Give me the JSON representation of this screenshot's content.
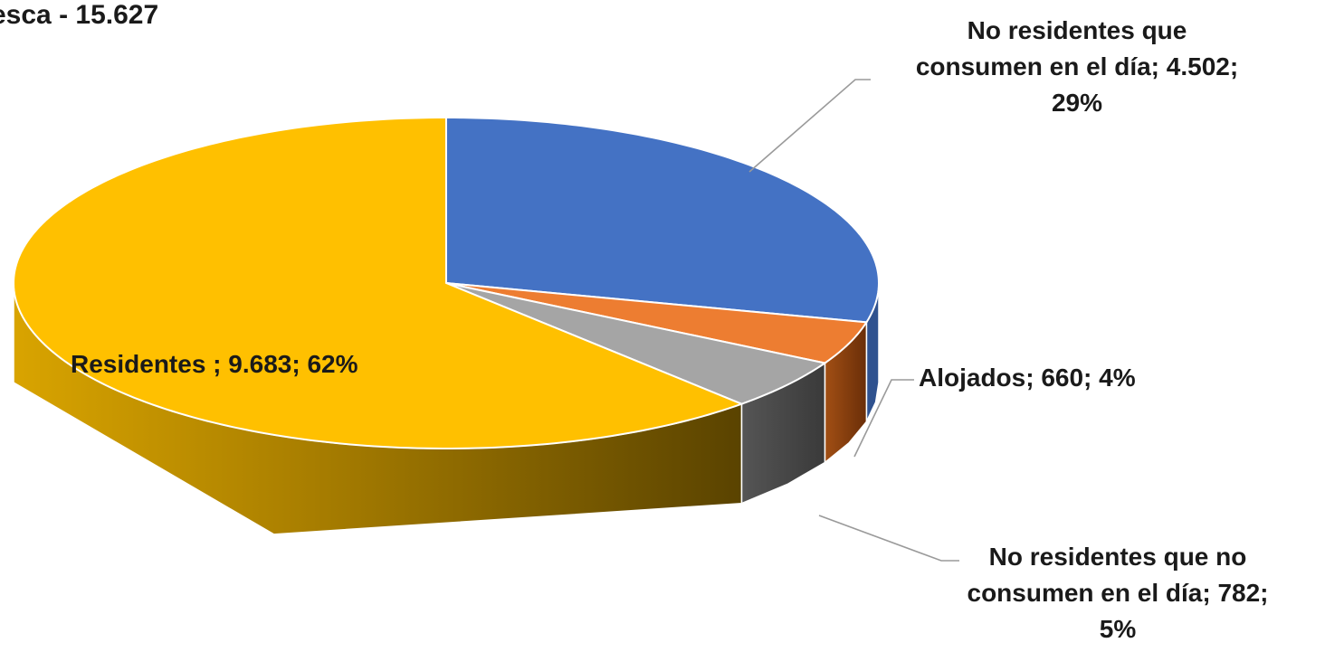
{
  "chart_data": {
    "type": "pie",
    "title": "esca - 15.627",
    "slices": [
      {
        "name": "No residentes que consumen en el día",
        "value": 4502,
        "percent": 29,
        "color": "#4472c4",
        "label_lines": [
          "No residentes que",
          "consumen en el día; 4.502;",
          "29%"
        ]
      },
      {
        "name": "Alojados",
        "value": 660,
        "percent": 4,
        "color": "#ed7d31",
        "label_lines": [
          "Alojados; 660; 4%"
        ]
      },
      {
        "name": "No residentes que no consumen en el día",
        "value": 782,
        "percent": 5,
        "color": "#a5a5a5",
        "label_lines": [
          "No residentes que no",
          "consumen en el día; 782;",
          "5%"
        ]
      },
      {
        "name": "Residentes",
        "value": 9683,
        "percent": 62,
        "color": "#ffc000",
        "label_lines": [
          "Residentes ; 9.683; 62%"
        ]
      }
    ]
  }
}
